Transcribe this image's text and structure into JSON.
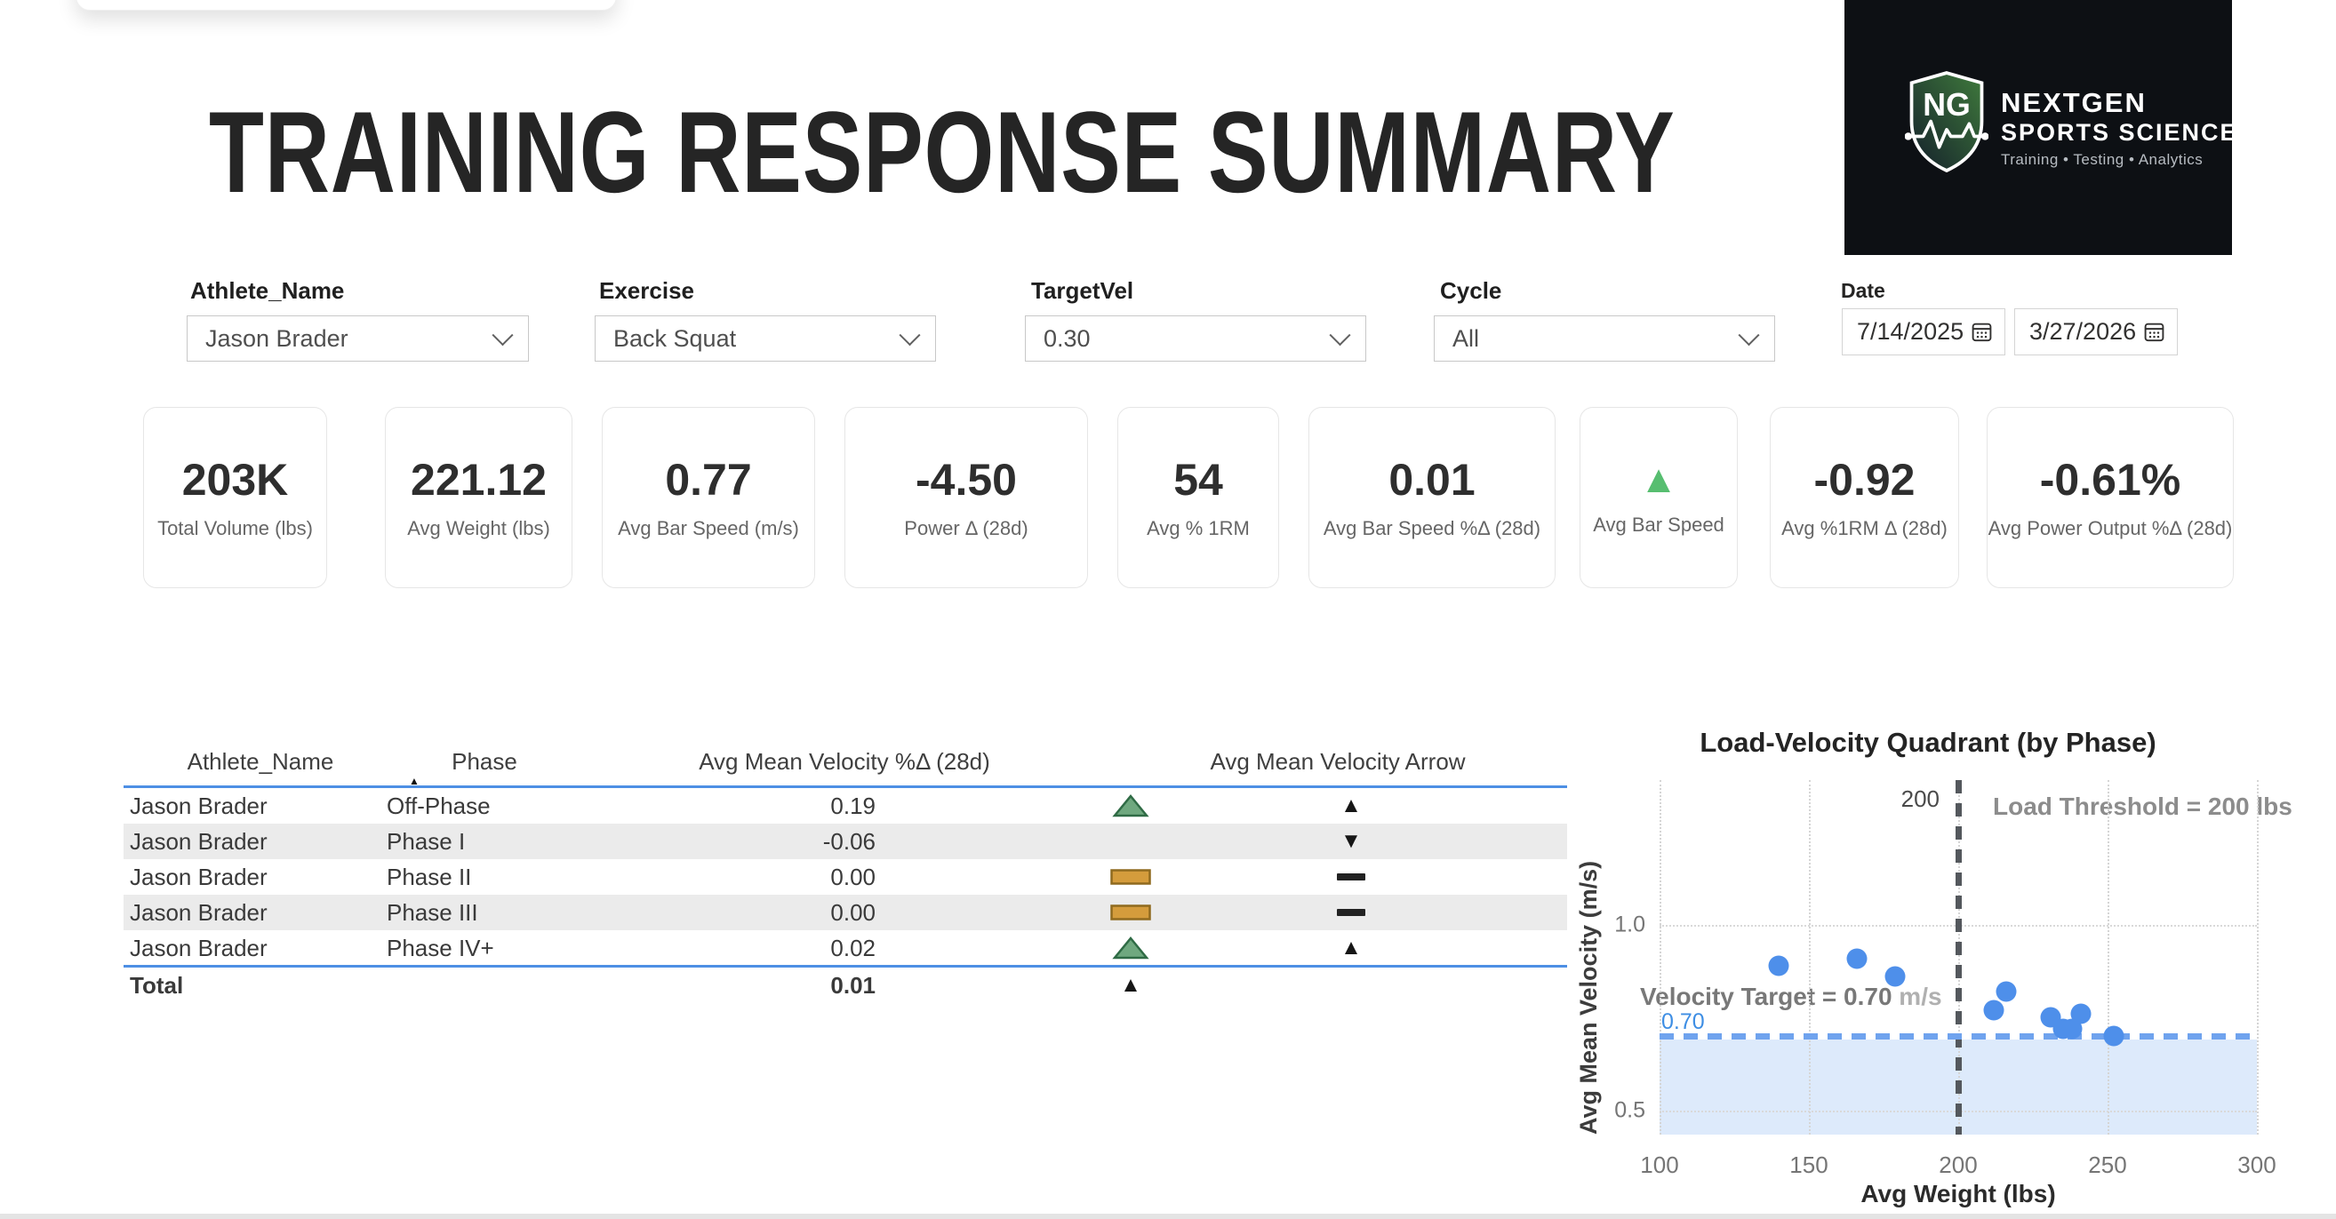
{
  "page": {
    "title": "TRAINING RESPONSE SUMMARY"
  },
  "logo": {
    "monogram": "NG",
    "name_line1": "NEXTGEN",
    "name_line2": "SPORTS SCIENCE",
    "tagline": "Training • Testing • Analytics"
  },
  "filters": {
    "athlete": {
      "label": "Athlete_Name",
      "value": "Jason Brader"
    },
    "exercise": {
      "label": "Exercise",
      "value": "Back Squat"
    },
    "targetvel": {
      "label": "TargetVel",
      "value": "0.30"
    },
    "cycle": {
      "label": "Cycle",
      "value": "All"
    },
    "date": {
      "label": "Date",
      "start": "7/14/2025",
      "end": "3/27/2026"
    }
  },
  "kpis": [
    {
      "value": "203K",
      "label": "Total Volume (lbs)"
    },
    {
      "value": "221.12",
      "label": "Avg Weight (lbs)"
    },
    {
      "value": "0.77",
      "label": "Avg Bar Speed (m/s)"
    },
    {
      "value": "-4.50",
      "label": "Power Δ (28d)"
    },
    {
      "value": "54",
      "label": "Avg % 1RM"
    },
    {
      "value": "0.01",
      "label": "Avg Bar Speed %Δ (28d)"
    },
    {
      "value": "▲",
      "label": "Avg Bar Speed",
      "value_color": "#57be70",
      "icon": "triangle-up-green"
    },
    {
      "value": "-0.92",
      "label": "Avg %1RM Δ (28d)"
    },
    {
      "value": "-0.61%",
      "label": "Avg Power Output %Δ (28d)"
    }
  ],
  "table": {
    "headers": [
      "Athlete_Name",
      "Phase",
      "Avg Mean Velocity %Δ (28d)",
      "Avg Mean Velocity Arrow"
    ],
    "sort_indicator": "▲",
    "rows": [
      {
        "athlete": "Jason Brader",
        "phase": "Off-Phase",
        "value": "0.19",
        "icon": "triangle-green",
        "arrow": "up"
      },
      {
        "athlete": "Jason Brader",
        "phase": "Phase I",
        "value": "-0.06",
        "icon": "none",
        "arrow": "down"
      },
      {
        "athlete": "Jason Brader",
        "phase": "Phase II",
        "value": "0.00",
        "icon": "bar-amber",
        "arrow": "dash"
      },
      {
        "athlete": "Jason Brader",
        "phase": "Phase III",
        "value": "0.00",
        "icon": "bar-amber",
        "arrow": "dash"
      },
      {
        "athlete": "Jason Brader",
        "phase": "Phase IV+",
        "value": "0.02",
        "icon": "triangle-green",
        "arrow": "up"
      }
    ],
    "total": {
      "label": "Total",
      "value": "0.01",
      "arrow": "up"
    }
  },
  "chart_data": {
    "type": "scatter",
    "title": "Load-Velocity Quadrant (by Phase)",
    "xlabel": "Avg Weight (lbs)",
    "ylabel": "Avg Mean Velocity (m/s)",
    "xlim": [
      100,
      300
    ],
    "ylim": [
      0.435,
      1.39
    ],
    "xticks": [
      100,
      150,
      200,
      250,
      300
    ],
    "yticks": [
      0.5,
      1.0
    ],
    "grid": true,
    "points": [
      [
        140,
        0.89
      ],
      [
        166,
        0.91
      ],
      [
        179,
        0.86
      ],
      [
        216,
        0.82
      ],
      [
        212,
        0.77
      ],
      [
        231,
        0.75
      ],
      [
        241,
        0.76
      ],
      [
        235,
        0.72
      ],
      [
        238,
        0.72
      ],
      [
        252,
        0.7
      ]
    ],
    "point_color": "#4e8fea",
    "threshold_line": {
      "x": 200,
      "label": "200",
      "annotation": "Load Threshold = 200 lbs"
    },
    "target_line": {
      "y": 0.7,
      "label": "0.70",
      "annotation": "Velocity Target = 0.70",
      "annotation_unit": " m/s"
    },
    "shaded_below": 0.7
  },
  "colors": {
    "accent_blue": "#4d8fe4",
    "icon_green": "#6fa87f",
    "icon_green_border": "#2f6b45",
    "icon_amber": "#d49c3c",
    "icon_amber_border": "#8f6a1e",
    "kpi_green": "#57be70"
  }
}
